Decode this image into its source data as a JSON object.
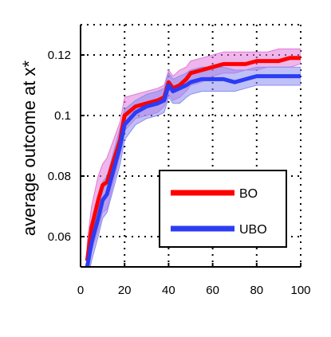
{
  "chart_data": {
    "type": "line",
    "title": "",
    "xlabel": "",
    "ylabel": "average outcome at x*",
    "xlim": [
      0,
      100
    ],
    "ylim": [
      0.05,
      0.13
    ],
    "xticks": [
      0,
      20,
      40,
      60,
      80,
      100
    ],
    "yticks": [
      0.06,
      0.08,
      0.1,
      0.12
    ],
    "xtick_labels": [
      "0",
      "20",
      "40",
      "60",
      "80",
      "100"
    ],
    "ytick_labels": [
      "0.06",
      "0.08",
      "0.1",
      "0.12"
    ],
    "grid": true,
    "legend_position": "lower-right",
    "series": [
      {
        "name": "BO",
        "color": "#ff0000",
        "band_color": "#e07ad8",
        "x": [
          3,
          5,
          8,
          10,
          12,
          15,
          18,
          20,
          25,
          30,
          35,
          38,
          40,
          42,
          45,
          48,
          50,
          55,
          60,
          65,
          70,
          75,
          80,
          85,
          90,
          95,
          100
        ],
        "y": [
          0.052,
          0.063,
          0.072,
          0.077,
          0.078,
          0.085,
          0.092,
          0.1,
          0.103,
          0.104,
          0.105,
          0.106,
          0.111,
          0.109,
          0.11,
          0.112,
          0.114,
          0.115,
          0.116,
          0.117,
          0.117,
          0.117,
          0.118,
          0.118,
          0.118,
          0.119,
          0.119
        ],
        "lower": [
          0.046,
          0.055,
          0.062,
          0.068,
          0.069,
          0.078,
          0.087,
          0.095,
          0.099,
          0.1,
          0.101,
          0.103,
          0.107,
          0.105,
          0.106,
          0.108,
          0.11,
          0.111,
          0.113,
          0.114,
          0.114,
          0.115,
          0.115,
          0.116,
          0.116,
          0.116,
          0.117
        ],
        "upper": [
          0.058,
          0.07,
          0.08,
          0.084,
          0.086,
          0.092,
          0.098,
          0.106,
          0.107,
          0.108,
          0.109,
          0.11,
          0.115,
          0.113,
          0.115,
          0.116,
          0.118,
          0.119,
          0.12,
          0.121,
          0.121,
          0.121,
          0.121,
          0.121,
          0.122,
          0.122,
          0.122
        ]
      },
      {
        "name": "UBO",
        "color": "#2b3cf5",
        "band_color": "#8a8cf0",
        "x": [
          3,
          5,
          8,
          10,
          12,
          15,
          18,
          20,
          25,
          30,
          35,
          38,
          40,
          42,
          45,
          48,
          50,
          55,
          60,
          65,
          70,
          75,
          80,
          85,
          90,
          95,
          100
        ],
        "y": [
          0.05,
          0.058,
          0.066,
          0.072,
          0.074,
          0.082,
          0.09,
          0.097,
          0.101,
          0.103,
          0.104,
          0.105,
          0.11,
          0.108,
          0.109,
          0.11,
          0.111,
          0.112,
          0.112,
          0.112,
          0.111,
          0.112,
          0.113,
          0.113,
          0.113,
          0.113,
          0.113
        ],
        "lower": [
          0.045,
          0.052,
          0.06,
          0.066,
          0.068,
          0.076,
          0.084,
          0.092,
          0.097,
          0.099,
          0.1,
          0.101,
          0.106,
          0.104,
          0.104,
          0.106,
          0.107,
          0.108,
          0.108,
          0.108,
          0.108,
          0.109,
          0.11,
          0.11,
          0.11,
          0.11,
          0.11
        ],
        "upper": [
          0.056,
          0.064,
          0.072,
          0.078,
          0.08,
          0.088,
          0.096,
          0.102,
          0.105,
          0.107,
          0.108,
          0.109,
          0.114,
          0.112,
          0.113,
          0.114,
          0.115,
          0.116,
          0.116,
          0.116,
          0.115,
          0.115,
          0.116,
          0.116,
          0.116,
          0.116,
          0.116
        ]
      }
    ]
  }
}
